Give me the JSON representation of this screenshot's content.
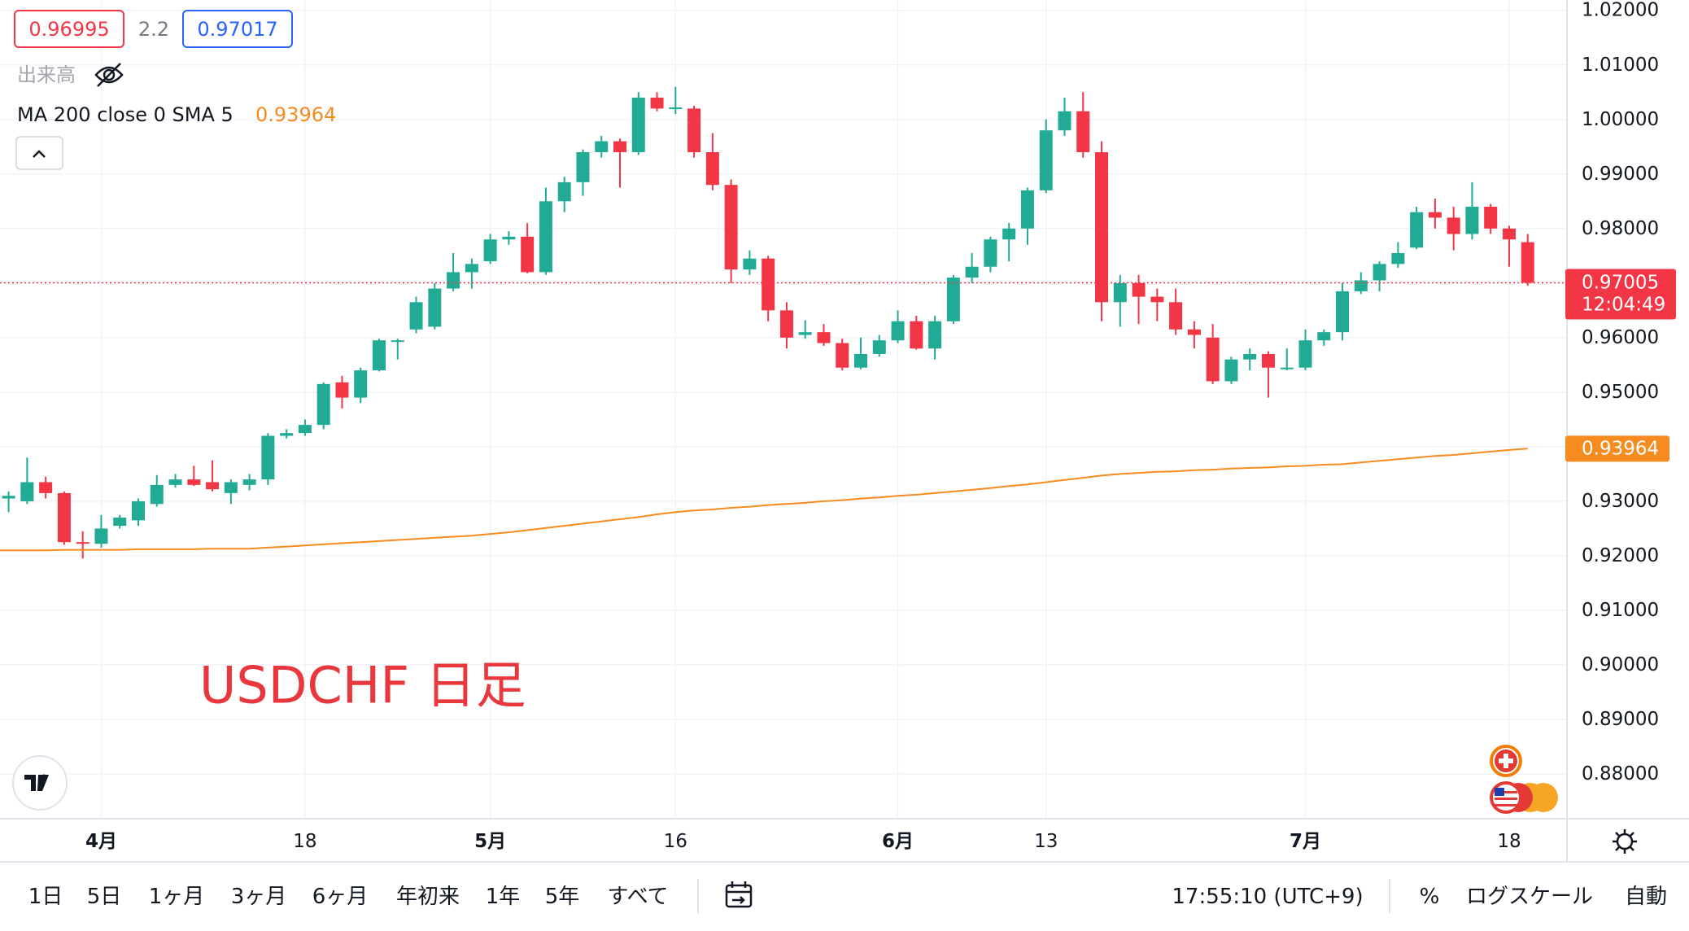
{
  "chart_data": {
    "type": "candlestick",
    "symbol_label": "USDCHF 日足",
    "bid": 0.96995,
    "spread": 2.2,
    "ask": 0.97017,
    "volume_label": "出来高",
    "indicator_label": "MA 200 close 0 SMA 5",
    "categories": [
      null,
      null,
      null,
      null,
      null,
      "4月",
      null,
      null,
      null,
      null,
      null,
      null,
      null,
      null,
      null,
      null,
      "18",
      null,
      null,
      null,
      null,
      null,
      null,
      null,
      null,
      null,
      "5月",
      null,
      null,
      null,
      null,
      null,
      null,
      null,
      null,
      null,
      "16",
      null,
      null,
      null,
      null,
      null,
      null,
      null,
      null,
      null,
      null,
      null,
      "6月",
      null,
      null,
      null,
      null,
      null,
      null,
      null,
      "13",
      null,
      null,
      null,
      null,
      null,
      null,
      null,
      null,
      null,
      null,
      null,
      null,
      null,
      "7月",
      null,
      null,
      null,
      null,
      null,
      null,
      null,
      null,
      null,
      null,
      "18",
      null
    ],
    "candles": {
      "up_color": "#22ab94",
      "down_color": "#f23645",
      "values": [
        [
          0.9305,
          0.9318,
          0.928,
          0.931
        ],
        [
          0.93,
          0.938,
          0.9295,
          0.9335
        ],
        [
          0.9335,
          0.9345,
          0.9305,
          0.9315
        ],
        [
          0.9315,
          0.9318,
          0.922,
          0.9225
        ],
        [
          0.9225,
          0.9245,
          0.9195,
          0.9222
        ],
        [
          0.9222,
          0.9275,
          0.9215,
          0.925
        ],
        [
          0.9255,
          0.9275,
          0.925,
          0.927
        ],
        [
          0.9265,
          0.9305,
          0.9255,
          0.93
        ],
        [
          0.9295,
          0.9348,
          0.929,
          0.933
        ],
        [
          0.933,
          0.935,
          0.9325,
          0.934
        ],
        [
          0.934,
          0.9365,
          0.9328,
          0.933
        ],
        [
          0.9335,
          0.9375,
          0.9318,
          0.9322
        ],
        [
          0.9315,
          0.934,
          0.9295,
          0.9335
        ],
        [
          0.933,
          0.935,
          0.932,
          0.934
        ],
        [
          0.934,
          0.9425,
          0.933,
          0.942
        ],
        [
          0.942,
          0.9432,
          0.9415,
          0.9425
        ],
        [
          0.9425,
          0.945,
          0.942,
          0.944
        ],
        [
          0.944,
          0.9518,
          0.9432,
          0.9515
        ],
        [
          0.9518,
          0.953,
          0.947,
          0.949
        ],
        [
          0.949,
          0.9545,
          0.948,
          0.954
        ],
        [
          0.954,
          0.9598,
          0.9538,
          0.9595
        ],
        [
          0.9595,
          0.9598,
          0.956,
          0.9595
        ],
        [
          0.9615,
          0.9675,
          0.9608,
          0.9665
        ],
        [
          0.962,
          0.97,
          0.9615,
          0.969
        ],
        [
          0.969,
          0.9755,
          0.9685,
          0.972
        ],
        [
          0.972,
          0.9745,
          0.969,
          0.9735
        ],
        [
          0.974,
          0.979,
          0.9735,
          0.978
        ],
        [
          0.978,
          0.9795,
          0.977,
          0.9785
        ],
        [
          0.9785,
          0.981,
          0.9718,
          0.972
        ],
        [
          0.972,
          0.9875,
          0.9715,
          0.985
        ],
        [
          0.985,
          0.9895,
          0.983,
          0.9885
        ],
        [
          0.9885,
          0.9945,
          0.986,
          0.994
        ],
        [
          0.994,
          0.997,
          0.993,
          0.996
        ],
        [
          0.996,
          0.9965,
          0.9875,
          0.994
        ],
        [
          0.994,
          1.005,
          0.9935,
          1.004
        ],
        [
          1.004,
          1.005,
          1.0015,
          1.002
        ],
        [
          1.002,
          1.006,
          1.001,
          1.0022
        ],
        [
          1.002,
          1.0025,
          0.993,
          0.994
        ],
        [
          0.994,
          0.9975,
          0.987,
          0.988
        ],
        [
          0.988,
          0.989,
          0.97,
          0.9725
        ],
        [
          0.9725,
          0.976,
          0.9715,
          0.9745
        ],
        [
          0.9745,
          0.975,
          0.963,
          0.965
        ],
        [
          0.965,
          0.9665,
          0.958,
          0.96
        ],
        [
          0.9605,
          0.9632,
          0.9598,
          0.961
        ],
        [
          0.961,
          0.9625,
          0.9585,
          0.959
        ],
        [
          0.959,
          0.9598,
          0.954,
          0.9545
        ],
        [
          0.9545,
          0.96,
          0.9542,
          0.957
        ],
        [
          0.957,
          0.9605,
          0.9565,
          0.9595
        ],
        [
          0.9595,
          0.965,
          0.959,
          0.963
        ],
        [
          0.963,
          0.964,
          0.9578,
          0.958
        ],
        [
          0.958,
          0.964,
          0.956,
          0.963
        ],
        [
          0.963,
          0.9715,
          0.9625,
          0.971
        ],
        [
          0.971,
          0.9755,
          0.97,
          0.973
        ],
        [
          0.973,
          0.9785,
          0.972,
          0.978
        ],
        [
          0.978,
          0.981,
          0.974,
          0.98
        ],
        [
          0.98,
          0.9875,
          0.977,
          0.987
        ],
        [
          0.987,
          1.0,
          0.9865,
          0.998
        ],
        [
          0.998,
          1.004,
          0.997,
          1.0015
        ],
        [
          1.0015,
          1.005,
          0.993,
          0.994
        ],
        [
          0.994,
          0.996,
          0.963,
          0.9665
        ],
        [
          0.9665,
          0.9715,
          0.962,
          0.97
        ],
        [
          0.97,
          0.9715,
          0.9625,
          0.9675
        ],
        [
          0.9675,
          0.969,
          0.963,
          0.9665
        ],
        [
          0.9665,
          0.969,
          0.9605,
          0.9615
        ],
        [
          0.9615,
          0.963,
          0.958,
          0.9605
        ],
        [
          0.96,
          0.9625,
          0.9515,
          0.952
        ],
        [
          0.952,
          0.9565,
          0.9515,
          0.956
        ],
        [
          0.956,
          0.958,
          0.954,
          0.957
        ],
        [
          0.957,
          0.9575,
          0.949,
          0.9545
        ],
        [
          0.9545,
          0.958,
          0.954,
          0.9545
        ],
        [
          0.9545,
          0.9615,
          0.954,
          0.9595
        ],
        [
          0.9595,
          0.9615,
          0.9585,
          0.961
        ],
        [
          0.961,
          0.97,
          0.9595,
          0.9685
        ],
        [
          0.9685,
          0.972,
          0.968,
          0.9705
        ],
        [
          0.9705,
          0.974,
          0.9685,
          0.9735
        ],
        [
          0.9735,
          0.9775,
          0.9728,
          0.9755
        ],
        [
          0.9765,
          0.984,
          0.9762,
          0.983
        ],
        [
          0.983,
          0.9855,
          0.98,
          0.982
        ],
        [
          0.982,
          0.984,
          0.976,
          0.979
        ],
        [
          0.979,
          0.9885,
          0.978,
          0.984
        ],
        [
          0.984,
          0.9845,
          0.979,
          0.98
        ],
        [
          0.98,
          0.9805,
          0.973,
          0.978
        ],
        [
          0.9775,
          0.979,
          0.9695,
          0.97005
        ]
      ]
    },
    "ma": {
      "color": "#f68b1f",
      "values": [
        0.921,
        0.921,
        0.921,
        0.9211,
        0.9211,
        0.9211,
        0.9211,
        0.9212,
        0.9212,
        0.9212,
        0.9212,
        0.9213,
        0.9213,
        0.9213,
        0.9215,
        0.9217,
        0.9219,
        0.9221,
        0.9223,
        0.9225,
        0.9227,
        0.9229,
        0.9231,
        0.9233,
        0.9235,
        0.9237,
        0.924,
        0.9243,
        0.9247,
        0.9251,
        0.9255,
        0.9259,
        0.9263,
        0.9267,
        0.9271,
        0.9276,
        0.928,
        0.9283,
        0.9285,
        0.9288,
        0.929,
        0.9293,
        0.9295,
        0.9297,
        0.93,
        0.9302,
        0.9305,
        0.9307,
        0.931,
        0.9312,
        0.9315,
        0.9318,
        0.9321,
        0.9324,
        0.9328,
        0.9331,
        0.9335,
        0.9339,
        0.9343,
        0.9347,
        0.935,
        0.9352,
        0.9354,
        0.9355,
        0.9357,
        0.9358,
        0.936,
        0.9361,
        0.9362,
        0.9364,
        0.9365,
        0.9367,
        0.9368,
        0.9371,
        0.9374,
        0.9377,
        0.938,
        0.9383,
        0.9385,
        0.9388,
        0.9391,
        0.9394,
        0.93964
      ]
    },
    "last_price": 0.97005,
    "countdown": "12:04:49",
    "last_color": "#f23645",
    "ylim": [
      0.8718,
      1.0219
    ],
    "yticks": [
      {
        "value": 0.88,
        "label": "0.88000"
      },
      {
        "value": 0.89,
        "label": "0.89000"
      },
      {
        "value": 0.9,
        "label": "0.90000"
      },
      {
        "value": 0.91,
        "label": "0.91000"
      },
      {
        "value": 0.92,
        "label": "0.92000"
      },
      {
        "value": 0.93,
        "label": "0.93000"
      },
      {
        "value": 0.94,
        "label": "0.94000"
      },
      {
        "value": 0.95,
        "label": "0.95000"
      },
      {
        "value": 0.96,
        "label": "0.96000"
      },
      {
        "value": 0.97,
        "label": "0.97000"
      },
      {
        "value": 0.98,
        "label": "0.98000"
      },
      {
        "value": 0.99,
        "label": "0.99000"
      },
      {
        "value": 1.0,
        "label": "1.00000"
      },
      {
        "value": 1.01,
        "label": "1.01000"
      },
      {
        "value": 1.02,
        "label": "1.02000"
      }
    ],
    "grid": true
  },
  "toolbar": {
    "ranges": [
      "1日",
      "5日",
      "1ヶ月",
      "3ヶ月",
      "6ヶ月",
      "年初来",
      "1年",
      "5年",
      "すべて"
    ],
    "clock": "17:55:10 (UTC+9)",
    "percent": "%",
    "log_scale": "ログスケール",
    "auto": "自動"
  }
}
